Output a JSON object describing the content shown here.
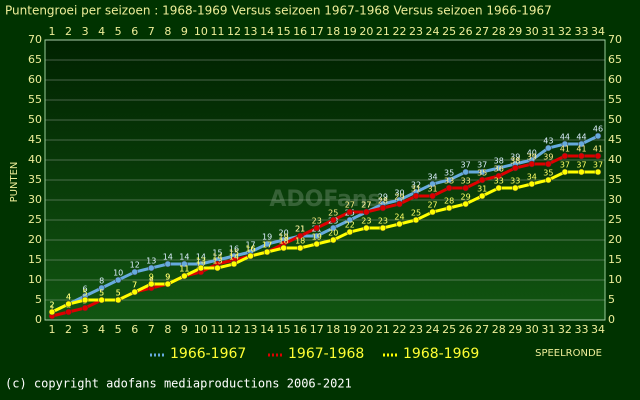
{
  "chart_data": {
    "type": "line",
    "title": "Puntengroei per seizoen : 1968-1969 Versus seizoen 1967-1968 Versus seizoen 1966-1967",
    "y_label": "PUNTEN",
    "x_label": "SPEELRONDE",
    "categories": [
      1,
      2,
      3,
      4,
      5,
      6,
      7,
      8,
      9,
      10,
      11,
      12,
      13,
      14,
      15,
      16,
      17,
      18,
      19,
      20,
      21,
      22,
      23,
      24,
      25,
      26,
      27,
      28,
      29,
      30,
      31,
      32,
      33,
      34
    ],
    "series": [
      {
        "name": "1966-1967",
        "color": "#66aadd",
        "values": [
          2,
          4,
          6,
          8,
          10,
          12,
          13,
          14,
          14,
          14,
          15,
          16,
          17,
          19,
          20,
          21,
          21,
          23,
          25,
          27,
          29,
          30,
          32,
          34,
          35,
          37,
          37,
          38,
          39,
          40,
          43,
          44,
          44,
          46
        ]
      },
      {
        "name": "1967-1968",
        "color": "#dd0000",
        "values": [
          1,
          2,
          3,
          5,
          5,
          7,
          8,
          9,
          11,
          12,
          14,
          15,
          16,
          17,
          19,
          21,
          23,
          25,
          27,
          27,
          28,
          29,
          31,
          31,
          33,
          33,
          35,
          36,
          38,
          39,
          39,
          41,
          41,
          41
        ]
      },
      {
        "name": "1968-1969",
        "color": "#ffff00",
        "values": [
          2,
          4,
          5,
          5,
          5,
          7,
          9,
          9,
          11,
          13,
          13,
          14,
          16,
          17,
          18,
          18,
          19,
          20,
          22,
          23,
          23,
          24,
          25,
          27,
          28,
          29,
          31,
          33,
          33,
          34,
          35,
          37,
          37,
          37
        ]
      }
    ],
    "ylim": [
      0,
      70
    ],
    "yticks": [
      0,
      5,
      10,
      15,
      20,
      25,
      30,
      35,
      40,
      45,
      50,
      55,
      60,
      65,
      70
    ],
    "grid": true,
    "legend": "bottom"
  },
  "watermark": "ADOFans",
  "footer": {
    "copyright": "(c) copyright adofans mediaproductions 2006-2021"
  }
}
